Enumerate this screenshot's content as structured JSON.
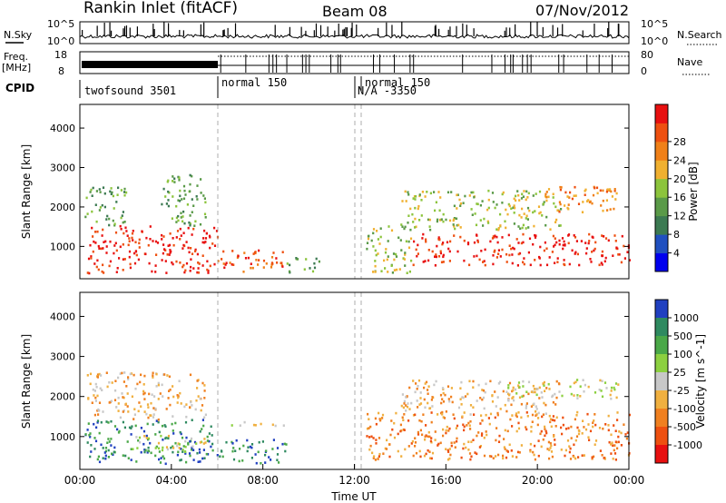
{
  "header": {
    "station": "Rankin Inlet (fitACF)",
    "beam": "Beam 08",
    "date": "07/Nov/2012"
  },
  "panels": {
    "nsky": {
      "label": "N.Sky",
      "tick_top": "10^5",
      "tick_bottom": "10^0",
      "right_label": "N.Search",
      "right_tick_top": "10^5",
      "right_tick_bottom": "10^0"
    },
    "freq": {
      "label_line1": "Freq.",
      "label_line2": "[MHz]",
      "tick_top": "18",
      "tick_bottom": "8",
      "right_label": "Nave",
      "right_tick_top": "80",
      "right_tick_bottom": "0"
    },
    "cpid": {
      "label": "CPID",
      "segments": [
        {
          "text": "twofsound 3501",
          "start_hour": 0.0
        },
        {
          "text": "normal 150",
          "start_hour": 6.0
        },
        {
          "text": "N/A -3350",
          "start_hour": 12.0
        },
        {
          "text": "normal 150",
          "start_hour": 12.3
        }
      ]
    }
  },
  "chart_data": [
    {
      "type": "heatmap",
      "title": "",
      "xlabel": "",
      "ylabel": "Slant Range [km]",
      "xlim": [
        0,
        24
      ],
      "ylim": [
        180,
        4600
      ],
      "yticks": [
        "1000",
        "2000",
        "3000",
        "4000"
      ],
      "colorbar_label": "Power [dB]",
      "colorbar_ticks": [
        "4",
        "8",
        "12",
        "16",
        "20",
        "24",
        "28"
      ],
      "colorbar_colors": [
        "#0000ee",
        "#2050c0",
        "#3c7a52",
        "#5a9a48",
        "#8cc43c",
        "#f0b030",
        "#f08018",
        "#ee5010",
        "#e81010"
      ],
      "regions": [
        {
          "t0": 0.3,
          "t1": 6.0,
          "r0": 300,
          "r1": 1500,
          "level": 8
        },
        {
          "t0": 6.0,
          "t1": 9.0,
          "r0": 300,
          "r1": 900,
          "level": 7
        },
        {
          "t0": 9.0,
          "t1": 10.5,
          "r0": 300,
          "r1": 700,
          "level": 3
        },
        {
          "t0": 12.5,
          "t1": 14.5,
          "r0": 300,
          "r1": 1500,
          "level": 4
        },
        {
          "t0": 14.5,
          "t1": 24.0,
          "r0": 500,
          "r1": 1300,
          "level": 8
        },
        {
          "t0": 14.0,
          "t1": 21.0,
          "r0": 1400,
          "r1": 2400,
          "level": 4
        },
        {
          "t0": 20.0,
          "t1": 23.5,
          "r0": 1800,
          "r1": 2500,
          "level": 6
        },
        {
          "t0": 0.2,
          "t1": 2.0,
          "r0": 1500,
          "r1": 2500,
          "level": 3
        },
        {
          "t0": 3.5,
          "t1": 5.5,
          "r0": 1500,
          "r1": 2800,
          "level": 3
        }
      ]
    },
    {
      "type": "heatmap",
      "title": "",
      "xlabel": "Time UT",
      "ylabel": "Slant Range [km]",
      "xlim": [
        0,
        24
      ],
      "ylim": [
        180,
        4600
      ],
      "xticks": [
        "00:00",
        "04:00",
        "08:00",
        "12:00",
        "16:00",
        "20:00",
        "00:00"
      ],
      "yticks": [
        "1000",
        "2000",
        "3000",
        "4000"
      ],
      "colorbar_label": "Velocity [m s^-1]",
      "colorbar_ticks": [
        "1000",
        "500",
        "100",
        "25",
        "-25",
        "-100",
        "-500",
        "-1000"
      ],
      "colorbar_colors": [
        "#2040c0",
        "#2f8a60",
        "#4aa848",
        "#8cd040",
        "#c8c8c8",
        "#f0b040",
        "#f08020",
        "#ee5010",
        "#e81010"
      ],
      "regions": [
        {
          "t0": 0.2,
          "t1": 6.0,
          "r0": 300,
          "r1": 1400,
          "level": 1
        },
        {
          "t0": 2.0,
          "t1": 5.5,
          "r0": 600,
          "r1": 1000,
          "level": 4
        },
        {
          "t0": 6.0,
          "t1": 9.0,
          "r0": 300,
          "r1": 900,
          "level": 1
        },
        {
          "t0": 6.5,
          "t1": 9.0,
          "r0": 1250,
          "r1": 1400,
          "level": 4
        },
        {
          "t0": 12.5,
          "t1": 24.0,
          "r0": 400,
          "r1": 1600,
          "level": 6
        },
        {
          "t0": 14.0,
          "t1": 21.0,
          "r0": 1500,
          "r1": 2400,
          "level": 5
        },
        {
          "t0": 18.5,
          "t1": 23.5,
          "r0": 1900,
          "r1": 2400,
          "level": 4
        },
        {
          "t0": 0.3,
          "t1": 5.5,
          "r0": 1400,
          "r1": 2600,
          "level": 5
        }
      ]
    }
  ]
}
